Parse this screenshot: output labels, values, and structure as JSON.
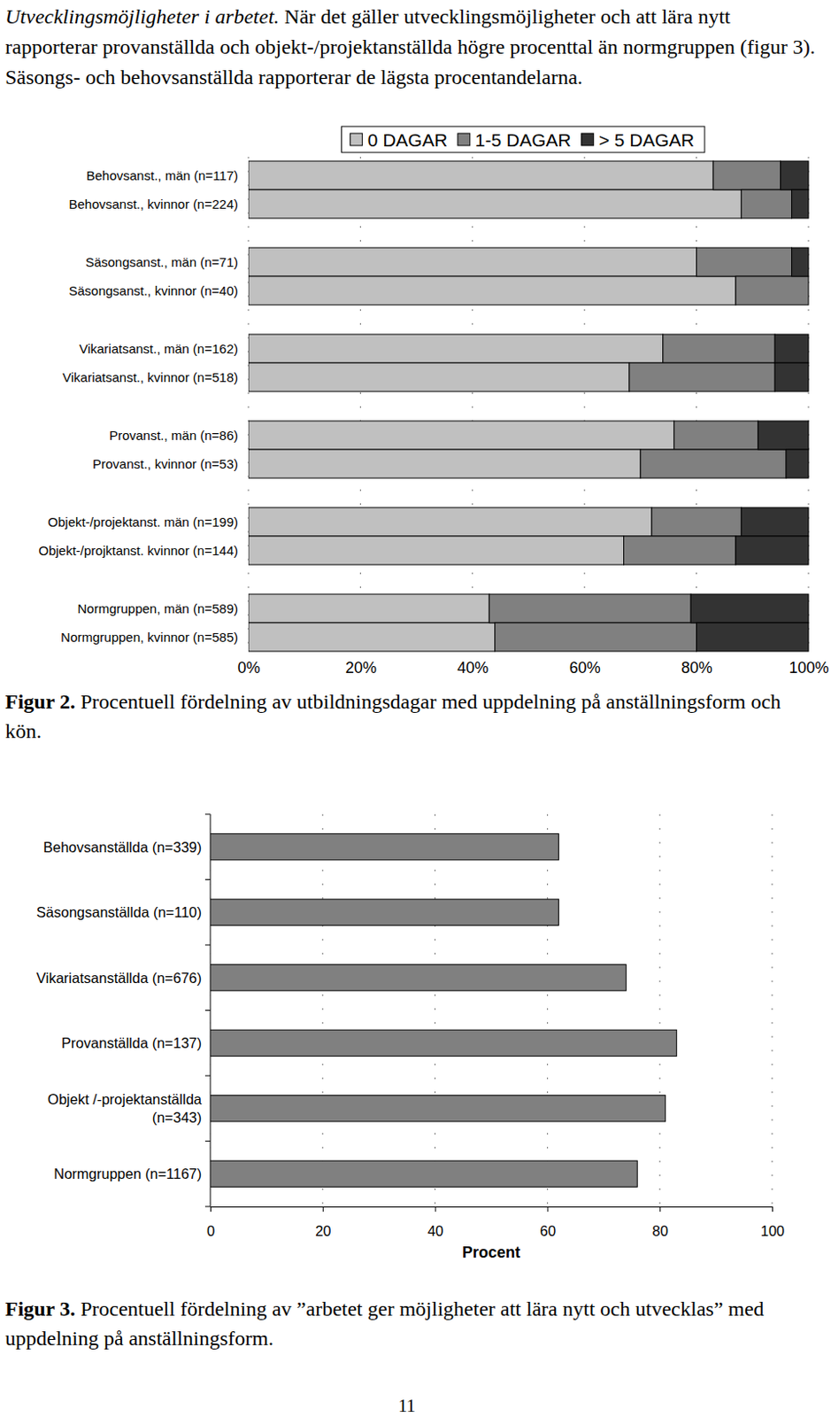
{
  "paragraph": {
    "heading": "Utvecklingsmöjligheter i arbetet.",
    "text": "När det gäller utvecklingsmöjligheter och att lära nytt rapporterar provanställda och objekt-/projektanställda högre procenttal än normgruppen (figur 3). Säsongs- och behovsanställda rapporterar de lägsta procentandelarna."
  },
  "chart_data": [
    {
      "type": "bar",
      "orientation": "horizontal",
      "stacked": true,
      "legend": "top",
      "grid": true,
      "categories": [
        "Behovsanst., män (n=117)",
        "Behovsanst., kvinnor (n=224)",
        "Säsongsanst., män (n=71)",
        "Säsongsanst., kvinnor (n=40)",
        "Vikariatsanst., män (n=162)",
        "Vikariatsanst., kvinnor (n=518)",
        "Provanst., män (n=86)",
        "Provanst., kvinnor (n=53)",
        "Objekt-/projektanst. män (n=199)",
        "Objekt-/projktanst. kvinnor (n=144)",
        "Normgruppen, män (n=589)",
        "Normgruppen, kvinnor (n=585)"
      ],
      "series": [
        {
          "name": "0 DAGAR",
          "color": "#c0c0c0",
          "values": [
            83,
            88,
            80,
            87,
            74,
            68,
            76,
            70,
            72,
            67,
            43,
            44
          ]
        },
        {
          "name": "1-5 DAGAR",
          "color": "#808080",
          "values": [
            12,
            9,
            17,
            13,
            20,
            26,
            15,
            26,
            16,
            20,
            36,
            36
          ]
        },
        {
          "name": "> 5 DAGAR",
          "color": "#333333",
          "values": [
            5,
            3,
            3,
            0,
            6,
            6,
            9,
            4,
            12,
            13,
            21,
            20
          ]
        }
      ],
      "xlim": [
        0,
        100
      ],
      "xticks": [
        {
          "value": 0,
          "label": "0%"
        },
        {
          "value": 20,
          "label": "20%"
        },
        {
          "value": 40,
          "label": "40%"
        },
        {
          "value": 60,
          "label": "60%"
        },
        {
          "value": 80,
          "label": "80%"
        },
        {
          "value": 100,
          "label": "100%"
        }
      ]
    },
    {
      "type": "bar",
      "orientation": "horizontal",
      "grid": true,
      "color": "#808080",
      "categories": [
        "Behovsanställda (n=339)",
        "Säsongsanställda (n=110)",
        "Vikariatsanställda (n=676)",
        "Provanställda (n=137)",
        "Objekt /-projektanställda (n=343)",
        "Normgruppen (n=1167)"
      ],
      "values": [
        62,
        62,
        74,
        83,
        81,
        76
      ],
      "x_label": "Procent",
      "xlim": [
        0,
        100
      ],
      "xticks": [
        0,
        20,
        40,
        60,
        80,
        100
      ]
    }
  ],
  "figures": [
    {
      "label": "Figur 2.",
      "caption": "Procentuell fördelning av utbildningsdagar med uppdelning på anställningsform och kön."
    },
    {
      "label": "Figur 3.",
      "caption": "Procentuell fördelning av ”arbetet ger möjligheter att lära nytt och utvecklas” med uppdelning på anställningsform."
    }
  ],
  "page_number": 11
}
